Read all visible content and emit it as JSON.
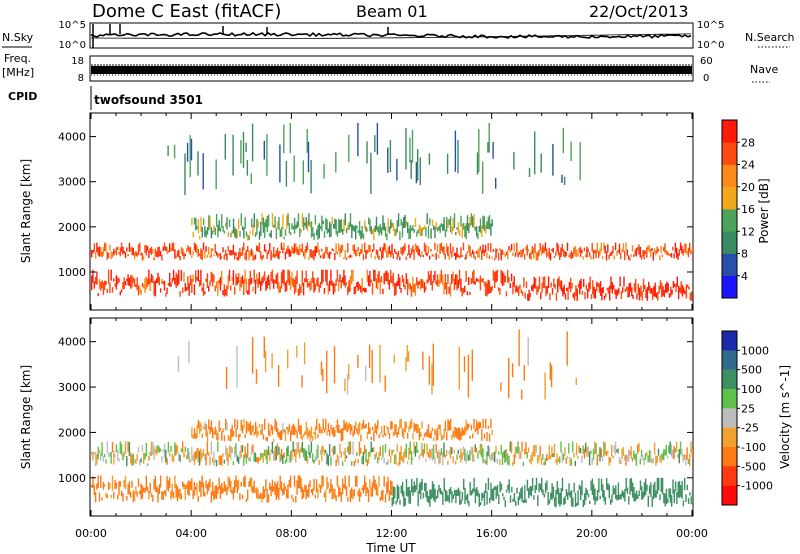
{
  "header": {
    "station": "Dome C East (fitACF)",
    "beam": "Beam 01",
    "date": "22/Oct/2013"
  },
  "noise_panel": {
    "left_label": "N.Sky",
    "right_label": "N.Search",
    "left_ticks": [
      "10^5",
      "10^0"
    ],
    "right_ticks": [
      "10^5",
      "10^0"
    ]
  },
  "freq_panel": {
    "left_label_line1": "Freq.",
    "left_label_line2": "[MHz]",
    "left_ticks": [
      "18",
      "8"
    ],
    "right_label": "Nave",
    "right_ticks": [
      "60",
      "0"
    ]
  },
  "cpid": {
    "label": "CPID",
    "value": "twofsound 3501"
  },
  "colors": {
    "power_scale": [
      "#1a14ff",
      "#2850a8",
      "#3a8a62",
      "#4ea35c",
      "#f2a81a",
      "#ff8a1a",
      "#ff4a10",
      "#ff1a0a"
    ],
    "velocity_scale": [
      "#1a2aa8",
      "#2f6a8a",
      "#3f8f64",
      "#5fc24a",
      "#bdbdbd",
      "#f2a030",
      "#ff7a15",
      "#ff3a10",
      "#ff0a0a"
    ]
  },
  "chart_data": [
    {
      "type": "heatmap",
      "name": "power",
      "xlabel": "",
      "ylabel": "Slant Range [km]",
      "x_range_ut_hours": [
        0,
        24
      ],
      "ylim": [
        180,
        4500
      ],
      "y_ticks": [
        1000,
        2000,
        3000,
        4000
      ],
      "colorbar": {
        "label": "Power [dB]",
        "ticks": [
          "4",
          "8",
          "12",
          "16",
          "20",
          "24",
          "28"
        ],
        "range": [
          0,
          32
        ]
      },
      "echo_regions": [
        {
          "t0": 0,
          "t1": 24,
          "r0": 1250,
          "r1": 1650,
          "value_db": 26
        },
        {
          "t0": 0,
          "t1": 17,
          "r0": 450,
          "r1": 1050,
          "value_db": 27
        },
        {
          "t0": 17,
          "t1": 24,
          "r0": 350,
          "r1": 900,
          "value_db": 28
        },
        {
          "t0": 4,
          "t1": 16,
          "r0": 1700,
          "r1": 2300,
          "value_db": 14
        },
        {
          "t0": 3,
          "t1": 20,
          "r0": 2700,
          "r1": 4300,
          "value_db": 10
        }
      ]
    },
    {
      "type": "heatmap",
      "name": "velocity",
      "xlabel": "Time UT",
      "ylabel": "Slant Range [km]",
      "x_range_ut_hours": [
        0,
        24
      ],
      "x_ticks": [
        "00:00",
        "04:00",
        "08:00",
        "12:00",
        "16:00",
        "20:00",
        "00:00"
      ],
      "ylim": [
        180,
        4500
      ],
      "y_ticks": [
        1000,
        2000,
        3000,
        4000
      ],
      "colorbar": {
        "label": "Velocity [m s^-1]",
        "ticks": [
          "1000",
          "500",
          "100",
          "25",
          "-25",
          "-100",
          "-500",
          "-1000"
        ]
      },
      "echo_regions": [
        {
          "t0": 0,
          "t1": 24,
          "r0": 1250,
          "r1": 1800,
          "value_ms": 0
        },
        {
          "t0": 0,
          "t1": 12,
          "r0": 450,
          "r1": 1050,
          "value_ms": -200
        },
        {
          "t0": 12,
          "t1": 24,
          "r0": 350,
          "r1": 1000,
          "value_ms": 300
        },
        {
          "t0": 4,
          "t1": 16,
          "r0": 1800,
          "r1": 2300,
          "value_ms": -150
        },
        {
          "t0": 3,
          "t1": 20,
          "r0": 2700,
          "r1": 4300,
          "value_ms": -100
        }
      ]
    }
  ]
}
